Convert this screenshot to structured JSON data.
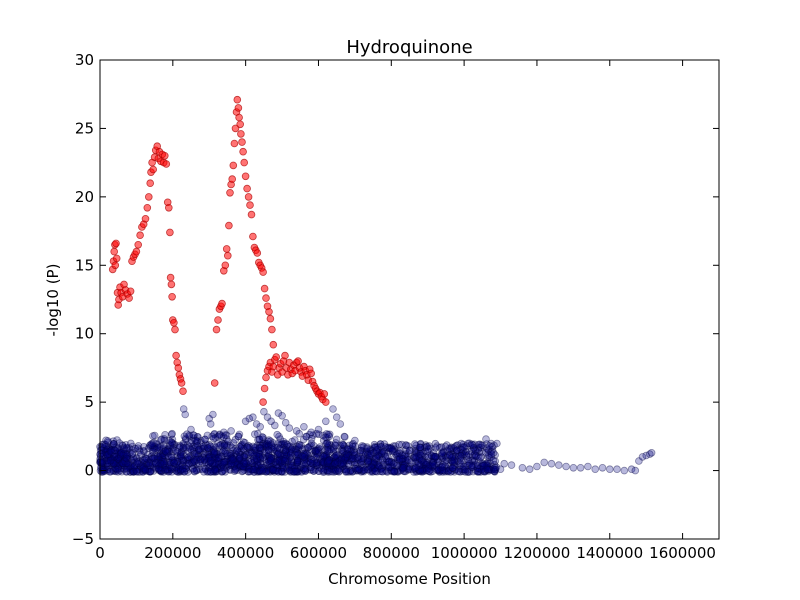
{
  "chart_data": {
    "type": "scatter",
    "title": "Hydroquinone",
    "xlabel": "Chromosome Position",
    "ylabel": "-log10 (P)",
    "xlim": [
      0,
      1700000
    ],
    "ylim": [
      -5,
      30
    ],
    "grid": false,
    "xticks": [
      0,
      200000,
      400000,
      600000,
      800000,
      1000000,
      1200000,
      1400000,
      1600000
    ],
    "yticks": [
      -5,
      0,
      5,
      10,
      15,
      20,
      25,
      30
    ],
    "series": [
      {
        "color": "#ff0000",
        "outline": "#aa0000",
        "opacity": 0.55,
        "points": [
          [
            35000,
            14.7
          ],
          [
            37000,
            15.3
          ],
          [
            39000,
            16.0
          ],
          [
            41000,
            16.5
          ],
          [
            42000,
            15.0
          ],
          [
            44000,
            16.6
          ],
          [
            46000,
            15.5
          ],
          [
            48000,
            13.0
          ],
          [
            50000,
            12.1
          ],
          [
            52000,
            12.5
          ],
          [
            55000,
            13.4
          ],
          [
            58000,
            13.0
          ],
          [
            62000,
            12.7
          ],
          [
            66000,
            13.6
          ],
          [
            70000,
            13.2
          ],
          [
            75000,
            12.9
          ],
          [
            80000,
            12.6
          ],
          [
            84000,
            13.1
          ],
          [
            88000,
            15.3
          ],
          [
            92000,
            15.6
          ],
          [
            96000,
            15.8
          ],
          [
            100000,
            16.0
          ],
          [
            105000,
            16.5
          ],
          [
            110000,
            17.2
          ],
          [
            115000,
            17.8
          ],
          [
            120000,
            18.0
          ],
          [
            125000,
            18.4
          ],
          [
            130000,
            19.2
          ],
          [
            134000,
            20.0
          ],
          [
            138000,
            21.0
          ],
          [
            140000,
            21.8
          ],
          [
            143000,
            22.5
          ],
          [
            146000,
            22.0
          ],
          [
            150000,
            22.9
          ],
          [
            153000,
            23.4
          ],
          [
            157000,
            23.7
          ],
          [
            160000,
            22.8
          ],
          [
            163000,
            23.3
          ],
          [
            167000,
            22.6
          ],
          [
            171000,
            23.1
          ],
          [
            175000,
            22.5
          ],
          [
            178000,
            23.0
          ],
          [
            182000,
            22.4
          ],
          [
            186000,
            19.6
          ],
          [
            189000,
            19.2
          ],
          [
            192000,
            17.4
          ],
          [
            194000,
            14.1
          ],
          [
            196000,
            13.6
          ],
          [
            198000,
            12.7
          ],
          [
            200000,
            11.0
          ],
          [
            203000,
            10.8
          ],
          [
            206000,
            10.3
          ],
          [
            209000,
            8.4
          ],
          [
            212000,
            7.9
          ],
          [
            215000,
            7.5
          ],
          [
            218000,
            7.0
          ],
          [
            221000,
            6.7
          ],
          [
            224000,
            6.4
          ],
          [
            228000,
            5.8
          ],
          [
            315000,
            6.4
          ],
          [
            320000,
            10.3
          ],
          [
            324000,
            11.0
          ],
          [
            328000,
            11.8
          ],
          [
            332000,
            12.0
          ],
          [
            335000,
            12.2
          ],
          [
            340000,
            14.6
          ],
          [
            344000,
            15.0
          ],
          [
            348000,
            16.2
          ],
          [
            351000,
            15.7
          ],
          [
            354000,
            17.9
          ],
          [
            357000,
            20.3
          ],
          [
            360000,
            20.9
          ],
          [
            363000,
            21.3
          ],
          [
            366000,
            22.3
          ],
          [
            369000,
            23.9
          ],
          [
            372000,
            25.0
          ],
          [
            375000,
            26.2
          ],
          [
            377000,
            27.1
          ],
          [
            380000,
            26.5
          ],
          [
            382000,
            25.8
          ],
          [
            385000,
            25.3
          ],
          [
            387000,
            24.6
          ],
          [
            390000,
            24.0
          ],
          [
            393000,
            23.3
          ],
          [
            396000,
            22.5
          ],
          [
            400000,
            21.5
          ],
          [
            404000,
            20.6
          ],
          [
            408000,
            20.0
          ],
          [
            412000,
            19.4
          ],
          [
            416000,
            18.7
          ],
          [
            420000,
            17.1
          ],
          [
            424000,
            16.3
          ],
          [
            428000,
            16.1
          ],
          [
            432000,
            15.9
          ],
          [
            436000,
            15.2
          ],
          [
            440000,
            15.0
          ],
          [
            444000,
            14.8
          ],
          [
            448000,
            14.5
          ],
          [
            452000,
            13.3
          ],
          [
            456000,
            12.6
          ],
          [
            460000,
            12.0
          ],
          [
            464000,
            11.6
          ],
          [
            468000,
            11.1
          ],
          [
            472000,
            10.3
          ],
          [
            476000,
            9.2
          ],
          [
            448000,
            5.0
          ],
          [
            452000,
            6.0
          ],
          [
            456000,
            6.8
          ],
          [
            460000,
            7.3
          ],
          [
            464000,
            7.6
          ],
          [
            468000,
            7.9
          ],
          [
            472000,
            7.2
          ],
          [
            476000,
            7.6
          ],
          [
            480000,
            8.1
          ],
          [
            484000,
            8.3
          ],
          [
            488000,
            7.0
          ],
          [
            492000,
            7.5
          ],
          [
            496000,
            7.8
          ],
          [
            500000,
            7.2
          ],
          [
            504000,
            8.0
          ],
          [
            508000,
            8.4
          ],
          [
            512000,
            7.5
          ],
          [
            516000,
            7.0
          ],
          [
            520000,
            7.9
          ],
          [
            524000,
            7.4
          ],
          [
            528000,
            7.1
          ],
          [
            532000,
            7.7
          ],
          [
            536000,
            7.3
          ],
          [
            540000,
            7.9
          ],
          [
            544000,
            8.0
          ],
          [
            548000,
            7.5
          ],
          [
            552000,
            7.2
          ],
          [
            556000,
            6.9
          ],
          [
            560000,
            7.6
          ],
          [
            564000,
            7.3
          ],
          [
            568000,
            7.0
          ],
          [
            572000,
            6.6
          ],
          [
            576000,
            7.4
          ],
          [
            580000,
            7.1
          ],
          [
            584000,
            6.5
          ],
          [
            588000,
            6.2
          ],
          [
            592000,
            6.0
          ],
          [
            596000,
            5.8
          ],
          [
            600000,
            5.6
          ],
          [
            604000,
            5.7
          ],
          [
            608000,
            5.4
          ],
          [
            612000,
            5.2
          ],
          [
            616000,
            5.6
          ],
          [
            620000,
            5.0
          ]
        ]
      },
      {
        "color": "#000080",
        "outline": "#000040",
        "opacity": 0.28,
        "points": [
          [
            230000,
            4.5
          ],
          [
            234000,
            4.1
          ],
          [
            250000,
            3.0
          ],
          [
            256000,
            2.6
          ],
          [
            262000,
            2.2
          ],
          [
            268000,
            1.8
          ],
          [
            300000,
            3.8
          ],
          [
            304000,
            3.4
          ],
          [
            310000,
            4.1
          ],
          [
            340000,
            2.8
          ],
          [
            360000,
            2.9
          ],
          [
            380000,
            2.5
          ],
          [
            400000,
            3.6
          ],
          [
            410000,
            3.8
          ],
          [
            420000,
            3.9
          ],
          [
            430000,
            3.4
          ],
          [
            440000,
            3.2
          ],
          [
            450000,
            4.3
          ],
          [
            460000,
            3.9
          ],
          [
            470000,
            3.6
          ],
          [
            480000,
            3.3
          ],
          [
            490000,
            4.2
          ],
          [
            500000,
            4.0
          ],
          [
            510000,
            3.5
          ],
          [
            520000,
            3.1
          ],
          [
            540000,
            2.9
          ],
          [
            560000,
            3.2
          ],
          [
            580000,
            2.8
          ],
          [
            600000,
            3.0
          ],
          [
            620000,
            3.6
          ],
          [
            640000,
            4.5
          ],
          [
            650000,
            3.9
          ],
          [
            660000,
            3.4
          ],
          [
            700000,
            2.2
          ],
          [
            720000,
            1.8
          ],
          [
            760000,
            1.4
          ],
          [
            800000,
            1.6
          ],
          [
            840000,
            1.5
          ],
          [
            880000,
            1.2
          ],
          [
            900000,
            1.4
          ],
          [
            920000,
            1.0
          ],
          [
            940000,
            1.3
          ],
          [
            960000,
            1.1
          ],
          [
            980000,
            1.5
          ],
          [
            1000000,
            1.7
          ],
          [
            1020000,
            1.4
          ],
          [
            1040000,
            1.9
          ],
          [
            1060000,
            2.3
          ],
          [
            1070000,
            1.8
          ],
          [
            1075000,
            1.2
          ],
          [
            1085000,
            0.2
          ],
          [
            1100000,
            0.1
          ],
          [
            1110000,
            0.5
          ],
          [
            1130000,
            0.4
          ],
          [
            1160000,
            0.2
          ],
          [
            1180000,
            0.1
          ],
          [
            1200000,
            0.3
          ],
          [
            1220000,
            0.6
          ],
          [
            1240000,
            0.5
          ],
          [
            1260000,
            0.4
          ],
          [
            1280000,
            0.3
          ],
          [
            1300000,
            0.2
          ],
          [
            1320000,
            0.2
          ],
          [
            1340000,
            0.3
          ],
          [
            1360000,
            0.1
          ],
          [
            1380000,
            0.2
          ],
          [
            1400000,
            0.1
          ],
          [
            1420000,
            0.1
          ],
          [
            1440000,
            0.0
          ],
          [
            1460000,
            0.1
          ],
          [
            1470000,
            0.0
          ],
          [
            1480000,
            0.7
          ],
          [
            1490000,
            1.0
          ],
          [
            1500000,
            1.1
          ],
          [
            1510000,
            1.2
          ],
          [
            1515000,
            1.3
          ]
        ],
        "dense_bands": [
          {
            "x_start": 0,
            "x_end": 1090000,
            "y_min": -0.1,
            "y_max": 2.0,
            "count": 1500
          },
          {
            "x_start": 0,
            "x_end": 80000,
            "y_min": 0.5,
            "y_max": 2.3,
            "count": 90
          },
          {
            "x_start": 140000,
            "x_end": 680000,
            "y_min": 0.5,
            "y_max": 2.7,
            "count": 400
          }
        ]
      }
    ]
  }
}
